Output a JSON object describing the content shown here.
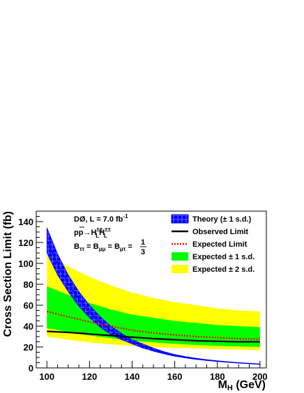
{
  "chart_data": {
    "type": "line",
    "xlabel": "M",
    "xlabel_sub": "H",
    "xlabel_unit": " (GeV)",
    "ylabel": "Cross Section Limit (fb)",
    "xlim": [
      95,
      203
    ],
    "ylim": [
      0,
      150
    ],
    "x_ticks": [
      100,
      120,
      140,
      160,
      180,
      200
    ],
    "y_ticks": [
      0,
      20,
      40,
      60,
      80,
      100,
      120,
      140
    ],
    "annotations": {
      "line1": "DØ, L = 7.0 fb",
      "line1_sup": "-1",
      "line2_p": "p",
      "line2_pbar": "p",
      "line2_arrow": "→",
      "line2_H": "H",
      "line2_sup": "±±",
      "line2_sub": "L",
      "line3_B": "B",
      "line3_tt": "ττ",
      "line3_eq": " = ",
      "line3_mm": "μμ",
      "line3_mt": "μτ",
      "line3_num": "1",
      "line3_den": "3"
    },
    "legend": [
      {
        "key": "theory",
        "label": "Theory (± 1 s.d.)"
      },
      {
        "key": "observed",
        "label": "Observed Limit"
      },
      {
        "key": "expected",
        "label": "Expected Limit"
      },
      {
        "key": "band1",
        "label": "Expected ± 1 s.d."
      },
      {
        "key": "band2",
        "label": "Expected ± 2 s.d."
      }
    ],
    "x": [
      100,
      110,
      120,
      130,
      140,
      150,
      160,
      170,
      180,
      190,
      200
    ],
    "theory_x": [
      100,
      105,
      110,
      115,
      120,
      125,
      130,
      135,
      140,
      145,
      150,
      155,
      160,
      165,
      170,
      175,
      180,
      185,
      190,
      195,
      200
    ],
    "theory_center": [
      122,
      99,
      81,
      66,
      54,
      44,
      36,
      30,
      25,
      21,
      17.5,
      14.5,
      12,
      10.2,
      8.7,
      7.5,
      6.5,
      5.6,
      4.8,
      4.2,
      3.6
    ],
    "theory_lower": [
      110,
      89,
      73,
      59,
      48,
      39,
      32,
      27,
      23,
      19,
      16,
      13.5,
      11.2,
      9.6,
      8.2,
      7.1,
      6.2,
      5.4,
      4.7,
      4.1,
      3.5
    ],
    "theory_upper": [
      134,
      109,
      89,
      73,
      60,
      49,
      40,
      33,
      27,
      23,
      19,
      15.5,
      12.8,
      10.8,
      9.2,
      7.9,
      6.8,
      5.8,
      5.0,
      4.3,
      3.7
    ],
    "series": [
      {
        "key": "observed",
        "name": "Observed Limit",
        "values": [
          35,
          34,
          32.5,
          31,
          29.5,
          28,
          27,
          26,
          25.5,
          25,
          25
        ]
      },
      {
        "key": "expected",
        "name": "Expected Limit",
        "values": [
          54,
          49,
          44,
          40,
          36,
          33.5,
          31.5,
          30,
          29,
          28,
          27.5
        ]
      },
      {
        "key": "band1_lower",
        "values": [
          38,
          34.5,
          31,
          28.5,
          26,
          24.5,
          23,
          22,
          21,
          20.5,
          20
        ]
      },
      {
        "key": "band1_upper",
        "values": [
          78,
          70,
          62,
          56,
          51,
          48,
          45,
          43,
          41,
          40,
          39
        ]
      },
      {
        "key": "band2_lower",
        "values": [
          30,
          27,
          24.5,
          22.5,
          21,
          20,
          19,
          18.5,
          18,
          17.5,
          17
        ]
      },
      {
        "key": "band2_upper",
        "values": [
          108,
          97,
          87,
          79,
          72,
          67,
          63,
          60,
          57,
          55,
          54
        ]
      }
    ],
    "colors": {
      "theory_fill": "#0000ff",
      "theory_line": "#0000ff",
      "theory_hatch": "#ffffff",
      "observed": "#000000",
      "expected": "#ff0000",
      "band1": "#00ff00",
      "band2": "#ffff00",
      "frame": "#000000",
      "background": "#ffffff"
    },
    "grid": false,
    "legend_position": "top-right"
  }
}
